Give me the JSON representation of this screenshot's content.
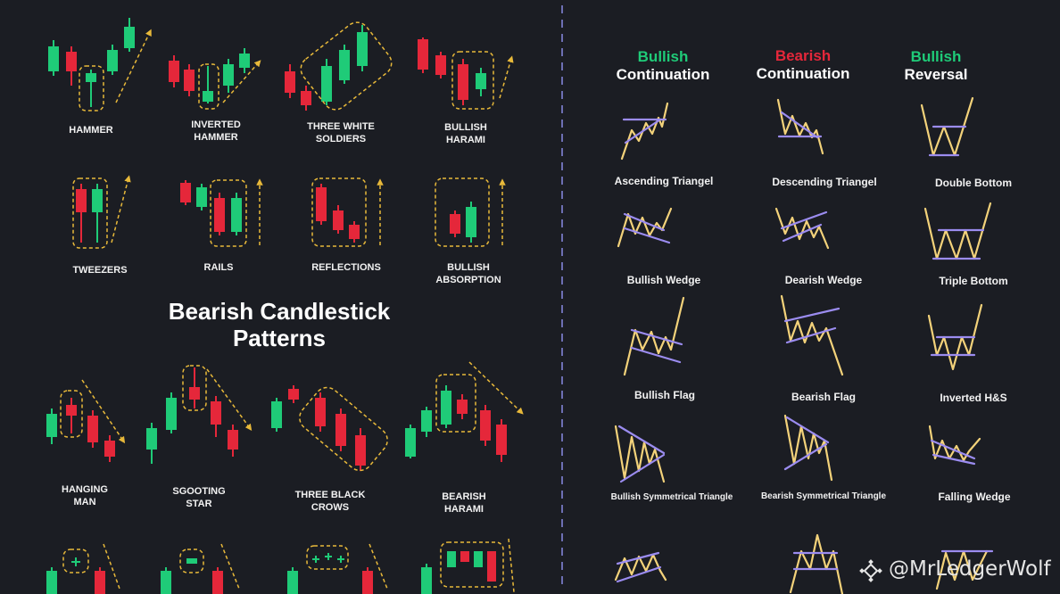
{
  "colors": {
    "bullish": "#1fcb78",
    "bearish": "#e5273a",
    "annotation": "#e8b93a",
    "pattern_line": "#f3d27a",
    "pattern_trend": "#9b8cf0",
    "divider": "#6d6fb3",
    "background": "#1b1d23"
  },
  "left": {
    "bullish_patterns": [
      "HAMMER",
      "INVERTED\nHAMMER",
      "THREE WHITE\nSOLDIERS",
      "BULLISH\nHARAMI",
      "TWEEZERS",
      "RAILS",
      "REFLECTIONS",
      "BULLISH\nABSORPTION"
    ],
    "heading": "Bearish Candlestick\nPatterns",
    "bearish_patterns": [
      "HANGING\nMAN",
      "SGOOTING\nSTAR",
      "THREE BLACK\nCROWS",
      "BEARISH\nHARAMI"
    ]
  },
  "right": {
    "columns": [
      {
        "label1": "Bullish",
        "label2": "Continuation",
        "tone": "bullish"
      },
      {
        "label1": "Bearish",
        "label2": "Continuation",
        "tone": "bearish"
      },
      {
        "label1": "Bullish",
        "label2": "Reversal",
        "tone": "bullish"
      }
    ],
    "patterns": [
      "Ascending Triangel",
      "Descending Triangel",
      "Double Bottom",
      "Bullish Wedge",
      "Dearish Wedge",
      "Triple Bottom",
      "Bullish Flag",
      "Bearish Flag",
      "Inverted H&S",
      "Bullish Symmetrical Triangle",
      "Bearish Symmetrical Triangle",
      "Falling Wedge"
    ]
  },
  "watermark": {
    "icon": "binance-diamond-icon",
    "text": "@MrLedgerWolf"
  }
}
